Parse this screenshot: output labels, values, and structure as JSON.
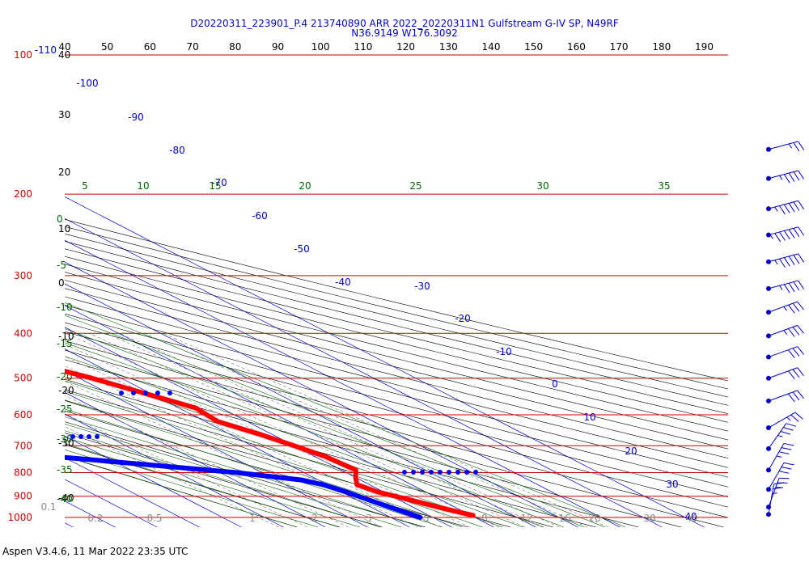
{
  "header": {
    "title_line1": "D20220311_223901_P.4 213740890 ARR 2022_20220311N1 Gulfstream G-IV SP, N49RF",
    "title_line2": "N36.9149 W176.3092"
  },
  "footer": {
    "version": "Aspen V3.4.6, 11 Mar 2022  23:35 UTC"
  },
  "colors": {
    "isobar": "#cc0000",
    "isotherm": "#0000cc",
    "dry_adiabat": "#000000",
    "moist_adiabat": "#006600",
    "mixing_ratio": "#777777",
    "temperature": "#ff0000",
    "dewpoint": "#0000ff",
    "wind_barb": "#0000cc"
  },
  "chart_data": {
    "type": "skew-t log-p",
    "pressure_levels": [
      "100",
      "200",
      "300",
      "400",
      "500",
      "600",
      "700",
      "800",
      "900",
      "1000"
    ],
    "pressure_level_extra": "-110",
    "theta_labels_top": [
      "40",
      "50",
      "60",
      "70",
      "80",
      "90",
      "100",
      "110",
      "120",
      "130",
      "140",
      "150",
      "160",
      "170",
      "180",
      "190"
    ],
    "theta_e_labels": [
      "5",
      "10",
      "15",
      "20",
      "25",
      "30",
      "35"
    ],
    "isotherm_labels": [
      "-100",
      "-90",
      "-80",
      "-70",
      "-60",
      "-50",
      "-40",
      "-30",
      "-20",
      "-10",
      "0",
      "10",
      "20",
      "30",
      "40"
    ],
    "left_scale_labels": [
      "40",
      "30",
      "20",
      "10",
      "0",
      "-10",
      "-20",
      "-30",
      "-40"
    ],
    "green_left_labels": [
      "0",
      "-5",
      "-10",
      "-15",
      "-20",
      "-25",
      "-30",
      "-35",
      "-40"
    ],
    "mixing_ratio_labels": [
      "0.1",
      "0.2",
      "0.5",
      "1",
      "2",
      "3",
      "5",
      "8",
      "12",
      "16",
      "20",
      "30",
      "40"
    ],
    "temperature_profile": [
      {
        "p": 180,
        "t": -57.5
      },
      {
        "p": 190,
        "t": -58
      },
      {
        "p": 200,
        "t": -58.5
      },
      {
        "p": 215,
        "t": -60.5
      },
      {
        "p": 230,
        "t": -62.5
      },
      {
        "p": 250,
        "t": -62
      },
      {
        "p": 270,
        "t": -61
      },
      {
        "p": 290,
        "t": -59
      },
      {
        "p": 305,
        "t": -60.5
      },
      {
        "p": 320,
        "t": -56
      },
      {
        "p": 350,
        "t": -49
      },
      {
        "p": 380,
        "t": -42
      },
      {
        "p": 420,
        "t": -34
      },
      {
        "p": 460,
        "t": -25
      },
      {
        "p": 500,
        "t": -17
      },
      {
        "p": 550,
        "t": -10
      },
      {
        "p": 580,
        "t": -6
      },
      {
        "p": 620,
        "t": -7
      },
      {
        "p": 660,
        "t": -3
      },
      {
        "p": 700,
        "t": 0
      },
      {
        "p": 740,
        "t": 2.5
      },
      {
        "p": 790,
        "t": 3.5
      },
      {
        "p": 820,
        "t": 0
      },
      {
        "p": 850,
        "t": -3
      },
      {
        "p": 880,
        "t": -1.5
      },
      {
        "p": 920,
        "t": 3
      },
      {
        "p": 960,
        "t": 7
      },
      {
        "p": 990,
        "t": 10.5
      }
    ],
    "dewpoint_profile": [
      {
        "p": 200,
        "t": -84.5
      },
      {
        "p": 220,
        "t": -89
      },
      {
        "p": 235,
        "t": -88
      },
      {
        "p": 255,
        "t": -79
      },
      {
        "p": 275,
        "t": -85
      },
      {
        "p": 290,
        "t": -90
      },
      {
        "p": 305,
        "t": -86
      },
      {
        "p": 320,
        "t": -75
      },
      {
        "p": 330,
        "t": -70
      },
      {
        "p": 350,
        "t": -79
      },
      {
        "p": 365,
        "t": -72
      },
      {
        "p": 380,
        "t": -76
      },
      {
        "p": 400,
        "t": -70
      },
      {
        "p": 440,
        "t": -68
      },
      {
        "p": 480,
        "t": -75
      },
      {
        "p": 500,
        "t": -74
      },
      {
        "p": 525,
        "t": -68
      },
      {
        "p": 550,
        "t": -82
      },
      {
        "p": 570,
        "t": -72
      },
      {
        "p": 600,
        "t": -89
      },
      {
        "p": 630,
        "t": -98
      },
      {
        "p": 680,
        "t": -91
      },
      {
        "p": 720,
        "t": -74
      },
      {
        "p": 750,
        "t": -55
      },
      {
        "p": 800,
        "t": -26
      },
      {
        "p": 830,
        "t": -14
      },
      {
        "p": 850,
        "t": -11
      },
      {
        "p": 880,
        "t": -9
      },
      {
        "p": 920,
        "t": -7
      },
      {
        "p": 960,
        "t": -5
      },
      {
        "p": 1000,
        "t": -3
      }
    ],
    "wind_barbs": [
      {
        "p": 160,
        "dir": 255,
        "spd": 25
      },
      {
        "p": 185,
        "dir": 255,
        "spd": 45
      },
      {
        "p": 215,
        "dir": 255,
        "spd": 55
      },
      {
        "p": 245,
        "dir": 255,
        "spd": 65
      },
      {
        "p": 280,
        "dir": 255,
        "spd": 55
      },
      {
        "p": 320,
        "dir": 255,
        "spd": 45
      },
      {
        "p": 360,
        "dir": 250,
        "spd": 35
      },
      {
        "p": 405,
        "dir": 250,
        "spd": 35
      },
      {
        "p": 450,
        "dir": 250,
        "spd": 30
      },
      {
        "p": 500,
        "dir": 250,
        "spd": 30
      },
      {
        "p": 560,
        "dir": 250,
        "spd": 30
      },
      {
        "p": 640,
        "dir": 240,
        "spd": 25
      },
      {
        "p": 710,
        "dir": 215,
        "spd": 35
      },
      {
        "p": 790,
        "dir": 210,
        "spd": 35
      },
      {
        "p": 870,
        "dir": 210,
        "spd": 30
      },
      {
        "p": 950,
        "dir": 200,
        "spd": 25
      },
      {
        "p": 985,
        "dir": 190,
        "spd": 25
      }
    ]
  }
}
